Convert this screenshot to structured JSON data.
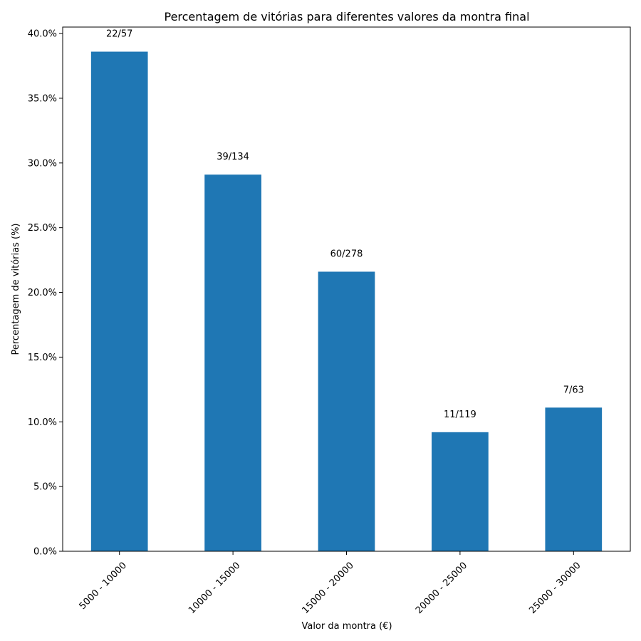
{
  "chart_data": {
    "type": "bar",
    "title": "Percentagem de vitórias para diferentes valores da montra final",
    "xlabel": "Valor da montra (€)",
    "ylabel": "Percentagem de vitórias (%)",
    "categories": [
      "5000 - 10000",
      "10000 - 15000",
      "15000 - 20000",
      "20000 - 25000",
      "25000 - 30000"
    ],
    "values": [
      38.6,
      29.1,
      21.6,
      9.2,
      11.1
    ],
    "data_labels": [
      "22/57",
      "39/134",
      "60/278",
      "11/119",
      "7/63"
    ],
    "ylim": [
      0,
      40.5
    ],
    "yticks": [
      0,
      5,
      10,
      15,
      20,
      25,
      30,
      35,
      40
    ],
    "ytick_labels": [
      "0.0%",
      "5.0%",
      "10.0%",
      "15.0%",
      "20.0%",
      "25.0%",
      "30.0%",
      "35.0%",
      "40.0%"
    ],
    "bar_color": "#1f77b4",
    "grid": false,
    "legend": "none"
  }
}
